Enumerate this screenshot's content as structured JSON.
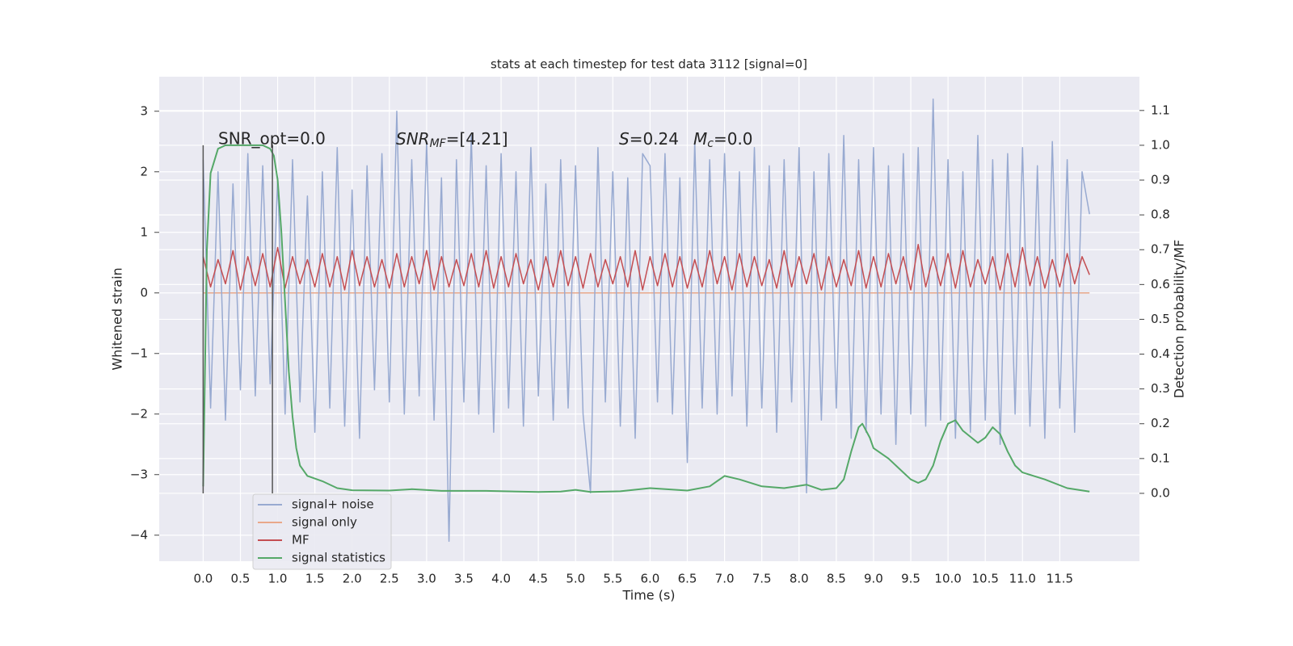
{
  "chart_data": {
    "type": "line",
    "title": "stats at each timestep for test data 3112 [signal=0]",
    "xlabel": "Time (s)",
    "ylabel": "Whitened strain",
    "y2label": "Detection probability/MF",
    "xlim": [
      -0.59,
      12.57
    ],
    "ylim": [
      -4.43,
      3.57
    ],
    "y2lim": [
      -0.195,
      1.197
    ],
    "grid": true,
    "legend": "lower left",
    "xticks": [
      {
        "value": 0,
        "label": "0.0"
      },
      0.5,
      {
        "value": 1,
        "label": "1.0"
      },
      1.5,
      {
        "value": 2,
        "label": "2.0"
      },
      2.5,
      {
        "value": 3,
        "label": "3.0"
      },
      3.5,
      {
        "value": 4,
        "label": "4.0"
      },
      4.5,
      {
        "value": 5,
        "label": "5.0"
      },
      5.5,
      {
        "value": 6,
        "label": "6.0"
      },
      6.5,
      {
        "value": 7,
        "label": "7.0"
      },
      7.5,
      {
        "value": 8,
        "label": "8.0"
      },
      8.5,
      {
        "value": 9,
        "label": "9.0"
      },
      9.5,
      {
        "value": 10,
        "label": "10.0"
      },
      10.5,
      {
        "value": 11,
        "label": "11.0"
      },
      11.5
    ],
    "yticks": [
      {
        "value": -4,
        "label": "−4"
      },
      {
        "value": -3,
        "label": "−3"
      },
      {
        "value": -2,
        "label": "−2"
      },
      {
        "value": -1,
        "label": "−1"
      },
      0,
      1,
      2,
      3
    ],
    "y2ticks": [
      {
        "value": 0,
        "label": "0.0"
      },
      0.1,
      0.2,
      0.3,
      0.4,
      0.5,
      0.6,
      0.7,
      0.8,
      0.9,
      {
        "value": 1,
        "label": "1.0"
      },
      1.1
    ],
    "vlines": [
      0,
      0.93
    ],
    "vline_span": [
      0,
      1
    ],
    "annotations": [
      {
        "text": "SNR_opt=0.0"
      },
      {
        "base": "SNR",
        "sub": "MF",
        "rest": "=[4.21]"
      },
      {
        "base": "S",
        "rest": "=0.24"
      },
      {
        "base": "M",
        "sub": "c",
        "rest": "=0.0"
      }
    ],
    "x": [
      0,
      0.1,
      0.2,
      0.3,
      0.4,
      0.5,
      0.6,
      0.7,
      0.8,
      0.9,
      1,
      1.1,
      1.2,
      1.3,
      1.4,
      1.5,
      1.6,
      1.7,
      1.8,
      1.9,
      2,
      2.1,
      2.2,
      2.3,
      2.4,
      2.5,
      2.6,
      2.7,
      2.8,
      2.9,
      3,
      3.1,
      3.2,
      3.3,
      3.4,
      3.5,
      3.6,
      3.7,
      3.8,
      3.9,
      4,
      4.1,
      4.2,
      4.3,
      4.4,
      4.5,
      4.6,
      4.7,
      4.8,
      4.9,
      5,
      5.1,
      5.2,
      5.3,
      5.4,
      5.5,
      5.6,
      5.7,
      5.8,
      5.9,
      6,
      6.1,
      6.2,
      6.3,
      6.4,
      6.5,
      6.6,
      6.7,
      6.8,
      6.9,
      7,
      7.1,
      7.2,
      7.3,
      7.4,
      7.5,
      7.6,
      7.7,
      7.8,
      7.9,
      8,
      8.1,
      8.2,
      8.3,
      8.4,
      8.5,
      8.6,
      8.7,
      8.8,
      8.9,
      9,
      9.1,
      9.2,
      9.3,
      9.4,
      9.5,
      9.6,
      9.7,
      9.8,
      9.9,
      10,
      10.1,
      10.2,
      10.3,
      10.4,
      10.5,
      10.6,
      10.7,
      10.8,
      10.9,
      11,
      11.1,
      11.2,
      11.3,
      11.4,
      11.5,
      11.6,
      11.7,
      11.8,
      11.9
    ],
    "series": [
      {
        "name": "signal+ noise",
        "color": "#98aad1",
        "values": [
          2.2,
          -1.9,
          2.0,
          -2.1,
          1.8,
          -1.6,
          2.3,
          -1.7,
          2.1,
          -1.5,
          1.9,
          -2.0,
          2.2,
          -1.8,
          1.6,
          -2.3,
          2.0,
          -1.9,
          2.4,
          -2.2,
          1.7,
          -2.4,
          2.1,
          -1.6,
          2.3,
          -1.8,
          3.0,
          -2.0,
          2.2,
          -1.7,
          2.5,
          -2.1,
          1.9,
          -4.1,
          2.2,
          -1.8,
          2.6,
          -2.0,
          2.1,
          -2.3,
          2.3,
          -1.9,
          2.0,
          -2.2,
          2.4,
          -1.7,
          1.8,
          -2.1,
          2.2,
          -1.9,
          2.1,
          -2.0,
          -3.3,
          2.4,
          -1.8,
          2.0,
          -2.2,
          1.9,
          -2.4,
          2.3,
          2.1,
          -1.8,
          2.3,
          -2.0,
          1.9,
          -2.8,
          2.5,
          -1.9,
          2.2,
          -2.0,
          2.3,
          -1.7,
          2.0,
          -2.2,
          2.4,
          -1.9,
          2.1,
          -2.3,
          2.2,
          -1.8,
          2.4,
          -3.3,
          2.0,
          -2.1,
          2.3,
          -1.9,
          2.6,
          -2.4,
          2.2,
          -2.3,
          2.4,
          -2.0,
          2.1,
          -2.5,
          2.3,
          -2.0,
          2.4,
          -2.2,
          3.2,
          -2.1,
          2.2,
          -2.4,
          2.0,
          -2.3,
          2.6,
          -2.1,
          2.2,
          -2.5,
          2.3,
          -2.0,
          2.4,
          -2.2,
          2.1,
          -2.4,
          2.5,
          -1.9,
          2.2,
          -2.3,
          2.0,
          1.3
        ]
      },
      {
        "name": "signal only",
        "color": "#e9a88a",
        "values": [
          0,
          0,
          0,
          0,
          0,
          0,
          0,
          0,
          0,
          0,
          0,
          0,
          0,
          0,
          0,
          0,
          0,
          0,
          0,
          0,
          0,
          0,
          0,
          0,
          0,
          0,
          0,
          0,
          0,
          0,
          0,
          0,
          0,
          0,
          0,
          0,
          0,
          0,
          0,
          0,
          0,
          0,
          0,
          0,
          0,
          0,
          0,
          0,
          0,
          0,
          0,
          0,
          0,
          0,
          0,
          0,
          0,
          0,
          0,
          0,
          0,
          0,
          0,
          0,
          0,
          0,
          0,
          0,
          0,
          0,
          0,
          0,
          0,
          0,
          0,
          0,
          0,
          0,
          0,
          0,
          0,
          0,
          0,
          0,
          0,
          0,
          0,
          0,
          0,
          0,
          0,
          0,
          0,
          0,
          0,
          0,
          0,
          0,
          0,
          0,
          0,
          0,
          0,
          0,
          0,
          0,
          0,
          0,
          0,
          0,
          0,
          0,
          0,
          0,
          0,
          0,
          0,
          0,
          0,
          0
        ]
      },
      {
        "name": "MF",
        "color": "#c44e52",
        "values": [
          0.6,
          0.1,
          0.55,
          0.15,
          0.7,
          0.05,
          0.6,
          0.12,
          0.65,
          0.1,
          0.75,
          0.08,
          0.6,
          0.15,
          0.55,
          0.1,
          0.65,
          0.1,
          0.6,
          0.05,
          0.7,
          0.12,
          0.6,
          0.1,
          0.55,
          0.08,
          0.65,
          0.1,
          0.6,
          0.15,
          0.7,
          0.05,
          0.6,
          0.1,
          0.55,
          0.12,
          0.65,
          0.1,
          0.7,
          0.08,
          0.6,
          0.1,
          0.65,
          0.15,
          0.55,
          0.05,
          0.6,
          0.1,
          0.7,
          0.12,
          0.6,
          0.08,
          0.65,
          0.1,
          0.55,
          0.15,
          0.6,
          0.1,
          0.7,
          0.05,
          0.6,
          0.12,
          0.65,
          0.1,
          0.6,
          0.08,
          0.55,
          0.1,
          0.7,
          0.15,
          0.6,
          0.05,
          0.65,
          0.1,
          0.6,
          0.12,
          0.55,
          0.08,
          0.7,
          0.1,
          0.6,
          0.15,
          0.65,
          0.05,
          0.6,
          0.1,
          0.55,
          0.12,
          0.7,
          0.08,
          0.6,
          0.1,
          0.65,
          0.15,
          0.6,
          0.05,
          0.8,
          0.1,
          0.6,
          0.12,
          0.65,
          0.08,
          0.7,
          0.1,
          0.55,
          0.15,
          0.6,
          0.05,
          0.65,
          0.1,
          0.75,
          0.12,
          0.6,
          0.08,
          0.55,
          0.1,
          0.65,
          0.15,
          0.6,
          0.3
        ]
      },
      {
        "name": "signal statistics",
        "color": "#55a868",
        "axis": "y2",
        "x": [
          0,
          0.05,
          0.1,
          0.2,
          0.3,
          0.5,
          0.8,
          0.9,
          0.95,
          1.0,
          1.05,
          1.1,
          1.15,
          1.2,
          1.25,
          1.3,
          1.4,
          1.6,
          1.8,
          2.0,
          2.5,
          2.8,
          3.2,
          3.8,
          4.5,
          4.8,
          5.0,
          5.2,
          5.6,
          6.0,
          6.5,
          6.8,
          7.0,
          7.2,
          7.5,
          7.8,
          8.1,
          8.3,
          8.5,
          8.6,
          8.7,
          8.8,
          8.85,
          8.95,
          9.0,
          9.2,
          9.4,
          9.5,
          9.6,
          9.7,
          9.8,
          9.9,
          10.0,
          10.1,
          10.2,
          10.4,
          10.5,
          10.6,
          10.7,
          10.8,
          10.9,
          11.0,
          11.3,
          11.6,
          11.9
        ],
        "values": [
          0.02,
          0.7,
          0.92,
          0.99,
          1.0,
          1.0,
          1.0,
          0.99,
          0.97,
          0.9,
          0.75,
          0.55,
          0.35,
          0.22,
          0.13,
          0.08,
          0.05,
          0.035,
          0.015,
          0.009,
          0.008,
          0.012,
          0.007,
          0.007,
          0.004,
          0.005,
          0.01,
          0.004,
          0.006,
          0.015,
          0.008,
          0.02,
          0.05,
          0.04,
          0.02,
          0.015,
          0.025,
          0.01,
          0.015,
          0.04,
          0.12,
          0.19,
          0.2,
          0.16,
          0.13,
          0.1,
          0.06,
          0.04,
          0.03,
          0.04,
          0.08,
          0.15,
          0.2,
          0.21,
          0.18,
          0.145,
          0.16,
          0.19,
          0.17,
          0.12,
          0.08,
          0.06,
          0.04,
          0.015,
          0.005
        ]
      }
    ]
  }
}
